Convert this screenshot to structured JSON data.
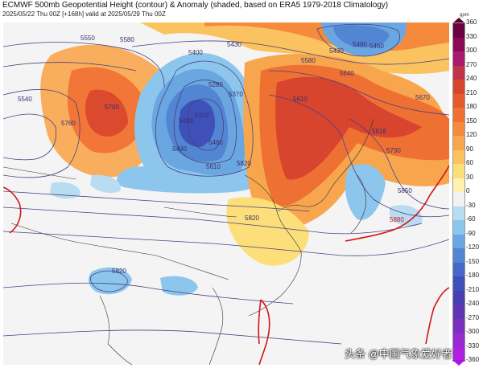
{
  "header": {
    "title": "ECMWF 500mb Geopotential Height (contour) & Anomaly (shaded, based on ERA5 1979-2018 Climatology)",
    "subtitle": "2025/05/22 Thu 00Z [+168h] valid at 2025/05/29 Thu 00Z"
  },
  "colorbar": {
    "unit": "gpm",
    "ticks": [
      "360",
      "330",
      "300",
      "270",
      "240",
      "210",
      "180",
      "150",
      "120",
      "90",
      "60",
      "30",
      "0",
      "-30",
      "-60",
      "-90",
      "-120",
      "-150",
      "-180",
      "-210",
      "-240",
      "-270",
      "-300",
      "-330",
      "-360"
    ],
    "colors": [
      "#6a0040",
      "#8a0a55",
      "#a81a6b",
      "#c0334b",
      "#d8452f",
      "#e55a2a",
      "#ef7033",
      "#f58a3c",
      "#f8a64d",
      "#fbc35f",
      "#fcdf7a",
      "#fff1b0",
      "#f2f2f2",
      "#b8ddf2",
      "#8cc6ec",
      "#6aa6e0",
      "#5285d2",
      "#4668c6",
      "#3f51b8",
      "#4a3fb0",
      "#6035b4",
      "#7a2fc0",
      "#942ad0",
      "#b020e0"
    ]
  },
  "contour_labels": [
    "5550",
    "5580",
    "5430",
    "5430",
    "5490",
    "5460",
    "5400",
    "5280",
    "5370",
    "5310",
    "5400",
    "5490",
    "5460",
    "5610",
    "5580",
    "5640",
    "5670",
    "5700",
    "5760",
    "5730",
    "5818",
    "5820",
    "5820",
    "5850",
    "5880",
    "5820",
    "5610",
    "5540"
  ],
  "watermark": "头条 @中国气象爱好者"
}
